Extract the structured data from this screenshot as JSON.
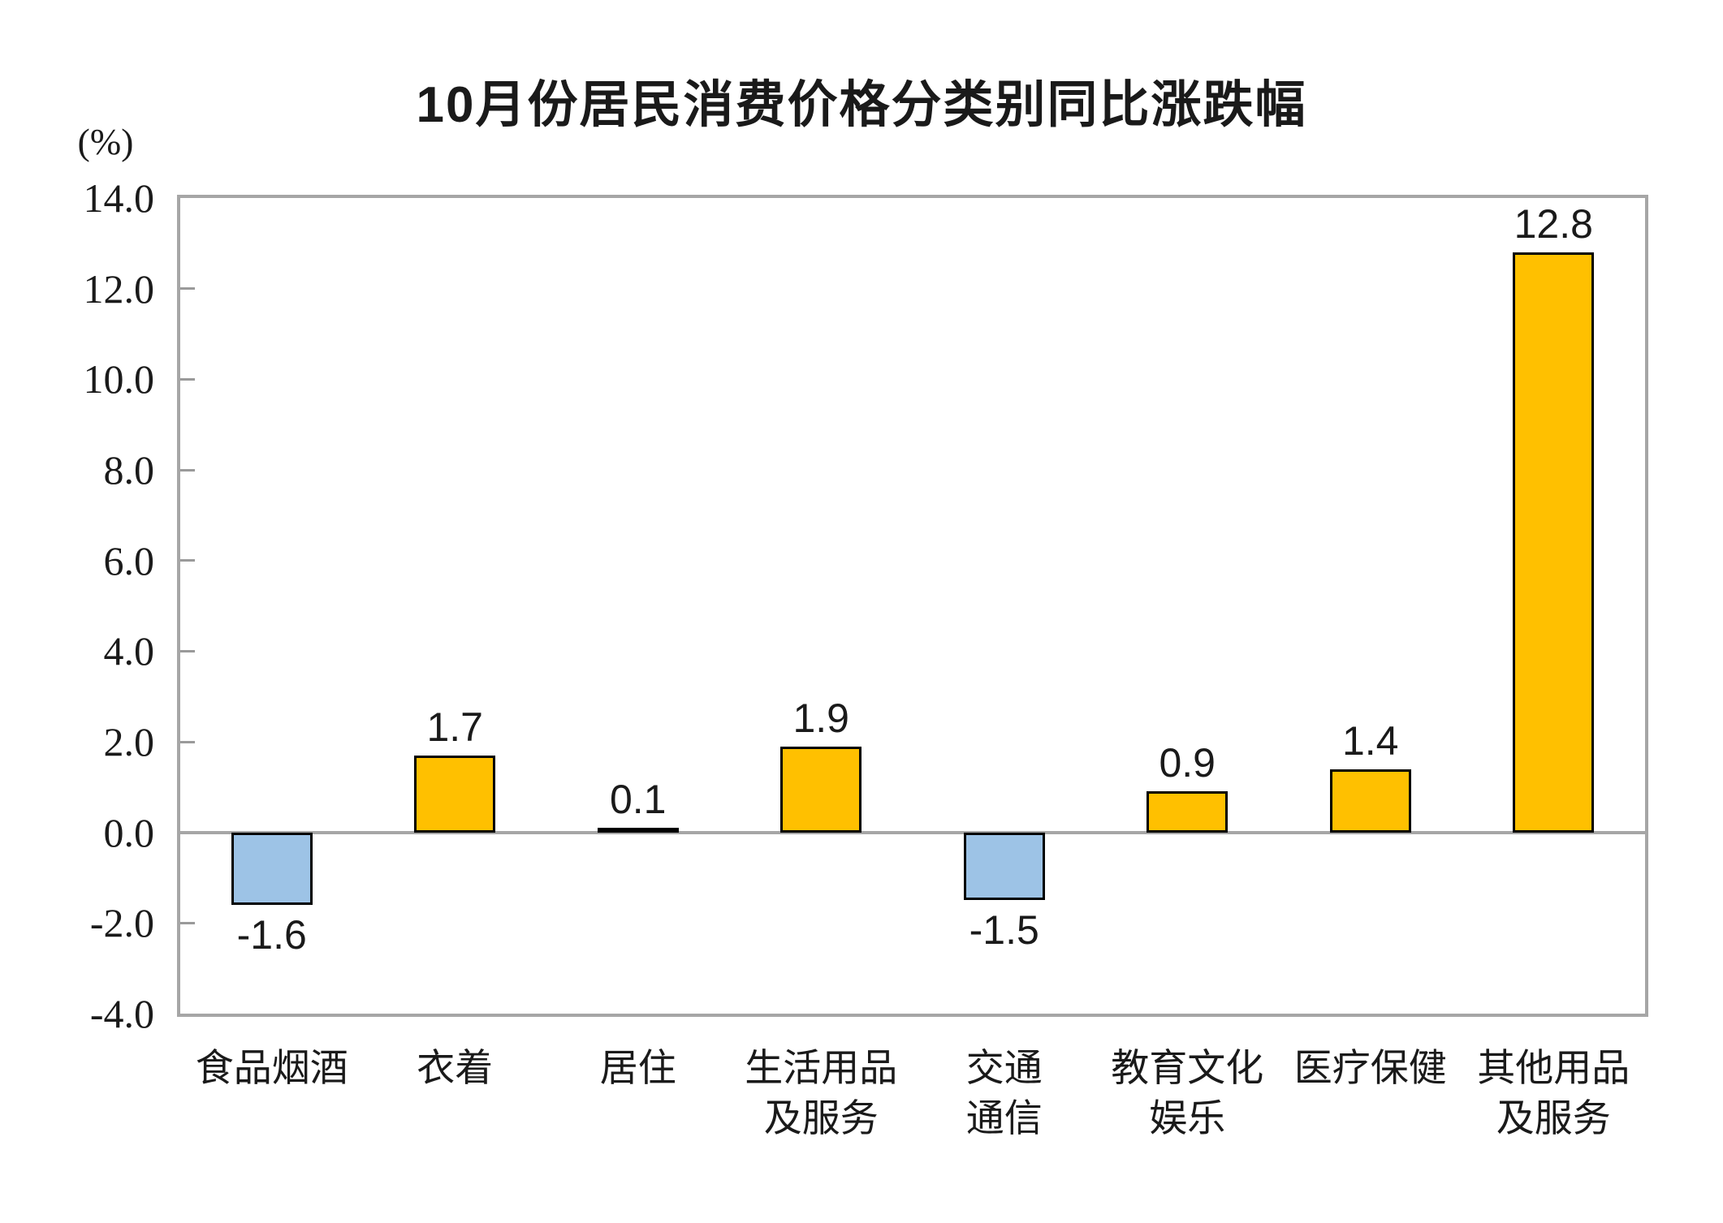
{
  "page": {
    "background": "#FFFFFF"
  },
  "chart_data": {
    "type": "bar",
    "title": "10月份居民消费价格分类别同比涨跌幅",
    "ylabel": "(%)",
    "categories": [
      "食品烟酒",
      "衣着",
      "居住",
      "生活用品\n及服务",
      "交通\n通信",
      "教育文化\n娱乐",
      "医疗保健",
      "其他用品\n及服务"
    ],
    "values": [
      -1.6,
      1.7,
      0.1,
      1.9,
      -1.5,
      0.9,
      1.4,
      12.8
    ],
    "value_labels": [
      "-1.6",
      "1.7",
      "0.1",
      "1.9",
      "-1.5",
      "0.9",
      "1.4",
      "12.8"
    ],
    "ylim": [
      -4.0,
      14.0
    ],
    "ytick_step": 2.0,
    "yticks": [
      14,
      12,
      10,
      8,
      6,
      4,
      2,
      0,
      -2,
      -4
    ],
    "ytick_labels": [
      "14.0",
      "12.0",
      "10.0",
      "8.0",
      "6.0",
      "4.0",
      "2.0",
      "0.0",
      "-2.0",
      "-4.0"
    ],
    "grid": false,
    "legend": false,
    "colors": {
      "positive_fill": "#FFC000",
      "negative_fill": "#9DC3E6",
      "bar_border": "#000000",
      "axis_gray": "#A6A6A6",
      "text": "#1A1A1A"
    }
  }
}
